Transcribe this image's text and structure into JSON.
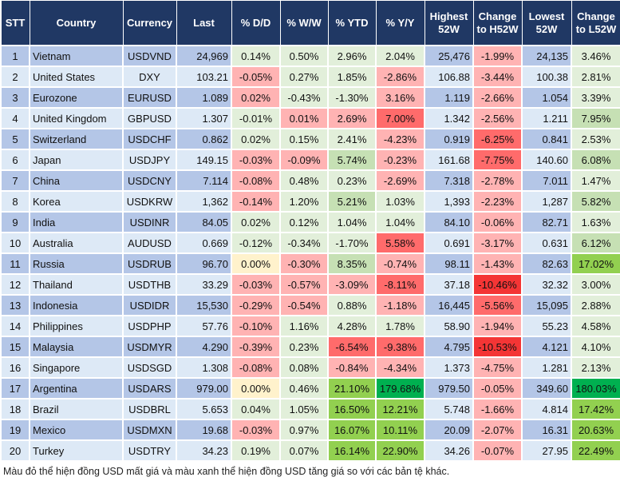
{
  "headers": [
    "STT",
    "Country",
    "Currency",
    "Last",
    "% D/D",
    "% W/W",
    "% YTD",
    "% Y/Y",
    "Highest 52W",
    "Change to H52W",
    "Lowest 52W",
    "Change to L52W"
  ],
  "level_colors": {
    "g1": "#e2efda",
    "g2": "#c6e0b4",
    "g3": "#92d050",
    "g4": "#00b050",
    "r1": "#ffb3b3",
    "r2": "#ff6b6b",
    "r3": "#f43535",
    "y": "#fff2cc"
  },
  "rows": [
    {
      "stt": "1",
      "country": "Vietnam",
      "currency": "USDVND",
      "last": "24,969",
      "dd": "0.14%",
      "ww": "0.50%",
      "ytd": "2.96%",
      "yy": "2.04%",
      "high": "25,476",
      "ch": "-1.99%",
      "low": "24,135",
      "cl": "3.46%",
      "levels": [
        "g1",
        "g1",
        "g1",
        "g1",
        "r1",
        "g1"
      ]
    },
    {
      "stt": "2",
      "country": "United States",
      "currency": "DXY",
      "last": "103.21",
      "dd": "-0.05%",
      "ww": "0.27%",
      "ytd": "1.85%",
      "yy": "-2.86%",
      "high": "106.88",
      "ch": "-3.44%",
      "low": "100.38",
      "cl": "2.81%",
      "levels": [
        "r1",
        "g1",
        "g1",
        "r1",
        "r1",
        "g1"
      ]
    },
    {
      "stt": "3",
      "country": "Eurozone",
      "currency": "EURUSD",
      "last": "1.089",
      "dd": "0.02%",
      "ww": "-0.43%",
      "ytd": "-1.30%",
      "yy": "3.16%",
      "high": "1.119",
      "ch": "-2.66%",
      "low": "1.054",
      "cl": "3.39%",
      "levels": [
        "r1",
        "g1",
        "g1",
        "r1",
        "r1",
        "g1"
      ]
    },
    {
      "stt": "4",
      "country": "United Kingdom",
      "currency": "GBPUSD",
      "last": "1.307",
      "dd": "-0.01%",
      "ww": "0.01%",
      "ytd": "2.69%",
      "yy": "7.00%",
      "high": "1.342",
      "ch": "-2.56%",
      "low": "1.211",
      "cl": "7.95%",
      "levels": [
        "g1",
        "r1",
        "r1",
        "r2",
        "r1",
        "g2"
      ]
    },
    {
      "stt": "5",
      "country": "Switzerland",
      "currency": "USDCHF",
      "last": "0.862",
      "dd": "0.02%",
      "ww": "0.15%",
      "ytd": "2.41%",
      "yy": "-4.23%",
      "high": "0.919",
      "ch": "-6.25%",
      "low": "0.841",
      "cl": "2.53%",
      "levels": [
        "g1",
        "g1",
        "g1",
        "r1",
        "r2",
        "g1"
      ]
    },
    {
      "stt": "6",
      "country": "Japan",
      "currency": "USDJPY",
      "last": "149.15",
      "dd": "-0.03%",
      "ww": "-0.09%",
      "ytd": "5.74%",
      "yy": "-0.23%",
      "high": "161.68",
      "ch": "-7.75%",
      "low": "140.60",
      "cl": "6.08%",
      "levels": [
        "r1",
        "r1",
        "g2",
        "r1",
        "r2",
        "g2"
      ]
    },
    {
      "stt": "7",
      "country": "China",
      "currency": "USDCNY",
      "last": "7.114",
      "dd": "-0.08%",
      "ww": "0.48%",
      "ytd": "0.23%",
      "yy": "-2.69%",
      "high": "7.318",
      "ch": "-2.78%",
      "low": "7.011",
      "cl": "1.47%",
      "levels": [
        "r1",
        "g1",
        "g1",
        "r1",
        "r1",
        "g1"
      ]
    },
    {
      "stt": "8",
      "country": "Korea",
      "currency": "USDKRW",
      "last": "1,362",
      "dd": "-0.14%",
      "ww": "1.20%",
      "ytd": "5.21%",
      "yy": "1.03%",
      "high": "1,393",
      "ch": "-2.23%",
      "low": "1,287",
      "cl": "5.82%",
      "levels": [
        "r1",
        "g1",
        "g2",
        "g1",
        "r1",
        "g2"
      ]
    },
    {
      "stt": "9",
      "country": "India",
      "currency": "USDINR",
      "last": "84.05",
      "dd": "0.02%",
      "ww": "0.12%",
      "ytd": "1.04%",
      "yy": "1.04%",
      "high": "84.10",
      "ch": "-0.06%",
      "low": "82.71",
      "cl": "1.63%",
      "levels": [
        "g1",
        "g1",
        "g1",
        "g1",
        "r1",
        "g1"
      ]
    },
    {
      "stt": "10",
      "country": "Australia",
      "currency": "AUDUSD",
      "last": "0.669",
      "dd": "-0.12%",
      "ww": "-0.34%",
      "ytd": "-1.70%",
      "yy": "5.58%",
      "high": "0.691",
      "ch": "-3.17%",
      "low": "0.631",
      "cl": "6.12%",
      "levels": [
        "g1",
        "g1",
        "g1",
        "r2",
        "r1",
        "g2"
      ]
    },
    {
      "stt": "11",
      "country": "Russia",
      "currency": "USDRUB",
      "last": "96.70",
      "dd": "0.00%",
      "ww": "-0.30%",
      "ytd": "8.35%",
      "yy": "-0.74%",
      "high": "98.11",
      "ch": "-1.43%",
      "low": "82.63",
      "cl": "17.02%",
      "levels": [
        "y",
        "r1",
        "g2",
        "r1",
        "r1",
        "g3"
      ]
    },
    {
      "stt": "12",
      "country": "Thailand",
      "currency": "USDTHB",
      "last": "33.29",
      "dd": "-0.03%",
      "ww": "-0.57%",
      "ytd": "-3.09%",
      "yy": "-8.11%",
      "high": "37.18",
      "ch": "-10.46%",
      "low": "32.32",
      "cl": "3.00%",
      "levels": [
        "r1",
        "r1",
        "r1",
        "r2",
        "r3",
        "g1"
      ]
    },
    {
      "stt": "13",
      "country": "Indonesia",
      "currency": "USDIDR",
      "last": "15,530",
      "dd": "-0.29%",
      "ww": "-0.54%",
      "ytd": "0.88%",
      "yy": "-1.18%",
      "high": "16,445",
      "ch": "-5.56%",
      "low": "15,095",
      "cl": "2.88%",
      "levels": [
        "r1",
        "r1",
        "g1",
        "r1",
        "r2",
        "g1"
      ]
    },
    {
      "stt": "14",
      "country": "Philippines",
      "currency": "USDPHP",
      "last": "57.76",
      "dd": "-0.10%",
      "ww": "1.16%",
      "ytd": "4.28%",
      "yy": "1.78%",
      "high": "58.90",
      "ch": "-1.94%",
      "low": "55.23",
      "cl": "4.58%",
      "levels": [
        "r1",
        "g1",
        "g1",
        "g1",
        "r1",
        "g1"
      ]
    },
    {
      "stt": "15",
      "country": "Malaysia",
      "currency": "USDMYR",
      "last": "4.290",
      "dd": "-0.39%",
      "ww": "0.23%",
      "ytd": "-6.54%",
      "yy": "-9.38%",
      "high": "4.795",
      "ch": "-10.53%",
      "low": "4.121",
      "cl": "4.10%",
      "levels": [
        "r1",
        "g1",
        "r2",
        "r2",
        "r3",
        "g1"
      ]
    },
    {
      "stt": "16",
      "country": "Singapore",
      "currency": "USDSGD",
      "last": "1.308",
      "dd": "-0.08%",
      "ww": "0.08%",
      "ytd": "-0.84%",
      "yy": "-4.34%",
      "high": "1.373",
      "ch": "-4.75%",
      "low": "1.281",
      "cl": "2.13%",
      "levels": [
        "r1",
        "g1",
        "r1",
        "r1",
        "r1",
        "g1"
      ]
    },
    {
      "stt": "17",
      "country": "Argentina",
      "currency": "USDARS",
      "last": "979.00",
      "dd": "0.00%",
      "ww": "0.46%",
      "ytd": "21.10%",
      "yy": "179.68%",
      "high": "979.50",
      "ch": "-0.05%",
      "low": "349.60",
      "cl": "180.03%",
      "levels": [
        "y",
        "g1",
        "g3",
        "g4",
        "r1",
        "g4"
      ]
    },
    {
      "stt": "18",
      "country": "Brazil",
      "currency": "USDBRL",
      "last": "5.653",
      "dd": "0.04%",
      "ww": "1.05%",
      "ytd": "16.50%",
      "yy": "12.21%",
      "high": "5.748",
      "ch": "-1.66%",
      "low": "4.814",
      "cl": "17.42%",
      "levels": [
        "g1",
        "g1",
        "g3",
        "g3",
        "r1",
        "g3"
      ]
    },
    {
      "stt": "19",
      "country": "Mexico",
      "currency": "USDMXN",
      "last": "19.68",
      "dd": "-0.03%",
      "ww": "0.97%",
      "ytd": "16.07%",
      "yy": "10.11%",
      "high": "20.09",
      "ch": "-2.07%",
      "low": "16.31",
      "cl": "20.63%",
      "levels": [
        "r1",
        "g1",
        "g3",
        "g3",
        "r1",
        "g3"
      ]
    },
    {
      "stt": "20",
      "country": "Turkey",
      "currency": "USDTRY",
      "last": "34.23",
      "dd": "0.19%",
      "ww": "0.07%",
      "ytd": "16.14%",
      "yy": "22.90%",
      "high": "34.26",
      "ch": "-0.07%",
      "low": "27.95",
      "cl": "22.49%",
      "levels": [
        "g1",
        "g1",
        "g3",
        "g3",
        "r1",
        "g3"
      ]
    }
  ],
  "footnote": "Màu đỏ thể hiện đồng USD mất giá và màu xanh thể hiện đồng USD tăng giá so với các bản tệ khác."
}
